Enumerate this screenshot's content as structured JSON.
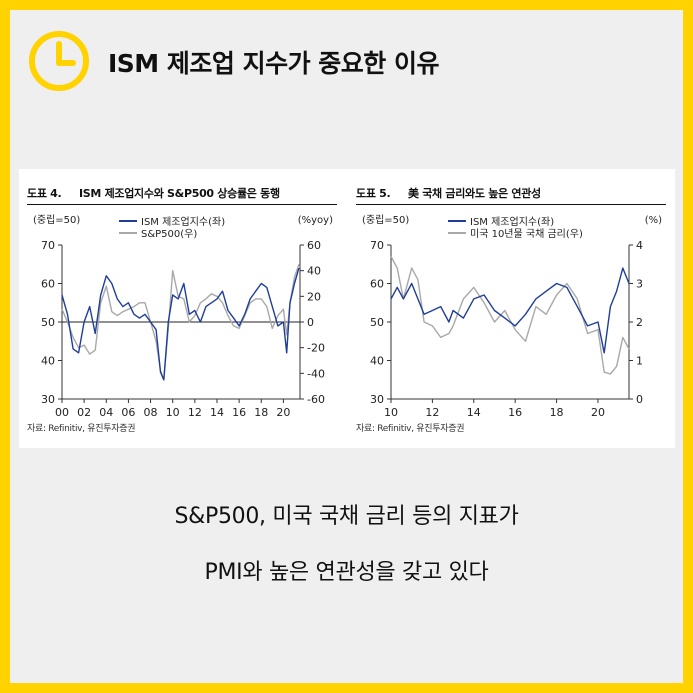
{
  "header": {
    "title": "ISM 제조업 지수가 중요한 이유",
    "icon": "clock-icon"
  },
  "caption": {
    "line1": "S&P500, 미국 국채 금리 등의 지표가",
    "line2": "PMI와 높은 연관성을 갖고 있다"
  },
  "colors": {
    "frame": "#FFD200",
    "card": "#EFEFEF",
    "ism": "#1F3E99",
    "other": "#A8A8A8"
  },
  "figures": [
    {
      "number": "도표 4.",
      "title": "ISM 제조업지수와 S&P500 상승률은 동행",
      "source": "자료: Refinitiv, 유진투자증권"
    },
    {
      "number": "도표 5.",
      "title": "美 국채 금리와도 높은 연관성",
      "source": "자료: Refinitiv, 유진투자증권"
    }
  ],
  "chart_data": [
    {
      "type": "line",
      "left_axis_label": "(중립=50)",
      "right_axis_label": "(%yoy)",
      "ylim_left": [
        30,
        70
      ],
      "yticks_left": [
        "30",
        "40",
        "50",
        "60",
        "70"
      ],
      "ylim_right": [
        -60,
        60
      ],
      "yticks_right": [
        "-60",
        "-40",
        "-20",
        "0",
        "20",
        "40",
        "60"
      ],
      "xlim": [
        2000,
        2021.5
      ],
      "xticks": [
        "00",
        "02",
        "04",
        "06",
        "08",
        "10",
        "12",
        "14",
        "16",
        "18",
        "20"
      ],
      "zero_line_on_right_axis": true,
      "series": [
        {
          "name": "ISM 제조업지수(좌)",
          "axis": "left",
          "x": [
            2000,
            2000.5,
            2001,
            2001.5,
            2002,
            2002.5,
            2003,
            2003.5,
            2004,
            2004.5,
            2005,
            2005.5,
            2006,
            2006.5,
            2007,
            2007.5,
            2008,
            2008.5,
            2008.9,
            2009.2,
            2009.6,
            2010,
            2010.5,
            2011,
            2011.5,
            2012,
            2012.5,
            2013,
            2013.5,
            2014,
            2014.5,
            2015,
            2015.5,
            2016,
            2016.5,
            2017,
            2017.5,
            2018,
            2018.5,
            2019,
            2019.5,
            2020,
            2020.3,
            2020.6,
            2021,
            2021.4
          ],
          "y": [
            57,
            52,
            43,
            42,
            50,
            54,
            47,
            57,
            62,
            60,
            56,
            54,
            55,
            52,
            51,
            52,
            50,
            48,
            37,
            35,
            50,
            57,
            56,
            60,
            52,
            53,
            50,
            54,
            55,
            56,
            58,
            53,
            51,
            49,
            52,
            56,
            58,
            60,
            59,
            54,
            49,
            50,
            42,
            55,
            60,
            64
          ]
        },
        {
          "name": "S&P500(우)",
          "axis": "right",
          "x": [
            2000,
            2000.5,
            2001,
            2001.5,
            2002,
            2002.5,
            2003,
            2003.5,
            2004,
            2004.5,
            2005,
            2005.5,
            2006,
            2006.5,
            2007,
            2007.5,
            2008,
            2008.5,
            2008.9,
            2009.2,
            2009.6,
            2010,
            2010.5,
            2011,
            2011.5,
            2012,
            2012.5,
            2013,
            2013.5,
            2014,
            2014.5,
            2015,
            2015.5,
            2016,
            2016.5,
            2017,
            2017.5,
            2018,
            2018.5,
            2019,
            2019.5,
            2020,
            2020.3,
            2020.6,
            2021,
            2021.4
          ],
          "y": [
            10,
            0,
            -12,
            -20,
            -18,
            -25,
            -22,
            15,
            28,
            8,
            5,
            8,
            10,
            12,
            15,
            15,
            0,
            -15,
            -38,
            -45,
            -5,
            40,
            20,
            18,
            0,
            5,
            15,
            18,
            22,
            20,
            15,
            5,
            -3,
            -5,
            5,
            15,
            18,
            18,
            12,
            -5,
            5,
            10,
            -10,
            15,
            35,
            45
          ]
        }
      ]
    },
    {
      "type": "line",
      "left_axis_label": "(중립=50)",
      "right_axis_label": "(%)",
      "ylim_left": [
        30,
        70
      ],
      "yticks_left": [
        "30",
        "40",
        "50",
        "60",
        "70"
      ],
      "ylim_right": [
        0,
        4
      ],
      "yticks_right": [
        "0",
        "1",
        "2",
        "3",
        "4"
      ],
      "xlim": [
        2010,
        2021.5
      ],
      "xticks": [
        "10",
        "12",
        "14",
        "16",
        "18",
        "20"
      ],
      "series": [
        {
          "name": "ISM 제조업지수(좌)",
          "axis": "left",
          "x": [
            2010,
            2010.3,
            2010.6,
            2011,
            2011.3,
            2011.6,
            2012,
            2012.4,
            2012.8,
            2013,
            2013.5,
            2014,
            2014.5,
            2015,
            2015.5,
            2016,
            2016.5,
            2017,
            2017.5,
            2018,
            2018.5,
            2019,
            2019.5,
            2020,
            2020.3,
            2020.6,
            2020.9,
            2021,
            2021.2,
            2021.5
          ],
          "y": [
            56,
            59,
            56,
            60,
            56,
            52,
            53,
            54,
            50,
            53,
            51,
            56,
            57,
            53,
            51,
            49,
            52,
            56,
            58,
            60,
            59,
            54,
            49,
            50,
            42,
            54,
            58,
            60,
            64,
            60
          ]
        },
        {
          "name": "미국 10년물 국채 금리(우)",
          "axis": "right",
          "x": [
            2010,
            2010.3,
            2010.6,
            2011,
            2011.3,
            2011.6,
            2012,
            2012.4,
            2012.8,
            2013,
            2013.5,
            2014,
            2014.5,
            2015,
            2015.5,
            2016,
            2016.5,
            2017,
            2017.5,
            2018,
            2018.5,
            2019,
            2019.5,
            2020,
            2020.3,
            2020.6,
            2020.9,
            2021,
            2021.2,
            2021.5
          ],
          "y": [
            3.7,
            3.4,
            2.6,
            3.4,
            3.1,
            2.0,
            1.9,
            1.6,
            1.7,
            1.9,
            2.6,
            2.9,
            2.5,
            2.0,
            2.3,
            1.8,
            1.5,
            2.4,
            2.2,
            2.7,
            3.0,
            2.6,
            1.7,
            1.8,
            0.7,
            0.65,
            0.85,
            1.1,
            1.6,
            1.3
          ]
        }
      ]
    }
  ]
}
